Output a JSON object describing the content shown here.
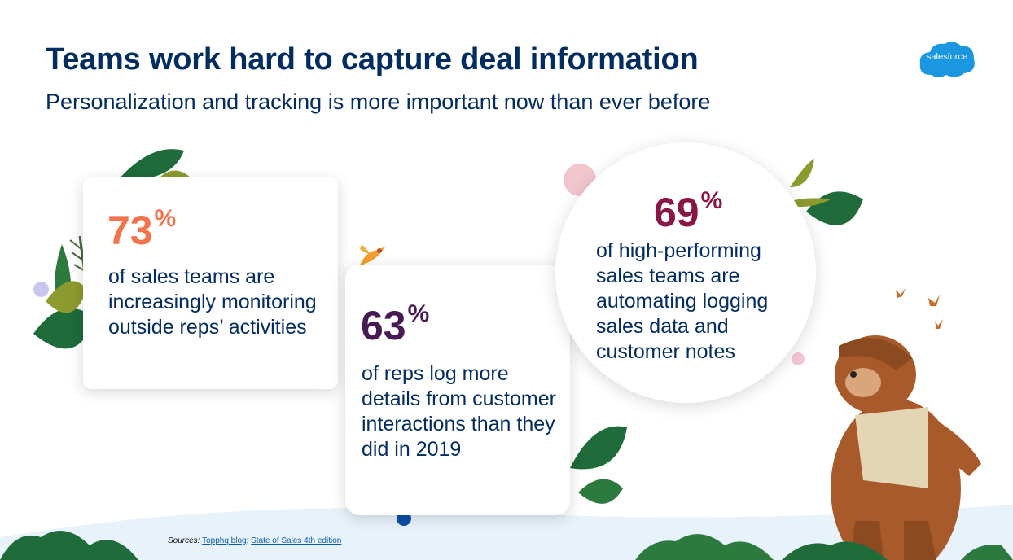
{
  "slide": {
    "title": "Teams work hard to capture deal information",
    "subtitle": "Personalization and tracking is more important now than ever before",
    "logo_text": "salesforce"
  },
  "stats": [
    {
      "value": "73",
      "unit": "%",
      "description": "of sales teams are increasingly monitoring outside reps’ activities",
      "color": "#f2744c"
    },
    {
      "value": "63",
      "unit": "%",
      "description": "of reps log more details from customer interactions than they did in 2019",
      "color": "#481a54"
    },
    {
      "value": "69",
      "unit": "%",
      "description": "of high-performing sales teams are automating logging sales data and customer notes",
      "color": "#8a1648"
    }
  ],
  "sources": {
    "label": "Sources:",
    "link1": "Topphq blog",
    "separator": ";",
    "link2": "State of Sales 4th edition"
  },
  "colors": {
    "title": "#032d60",
    "logo": "#1b96e0",
    "leaf_dark": "#1f6b3a",
    "leaf_olive": "#8c9a2e",
    "hill": "#e6f1fa"
  }
}
